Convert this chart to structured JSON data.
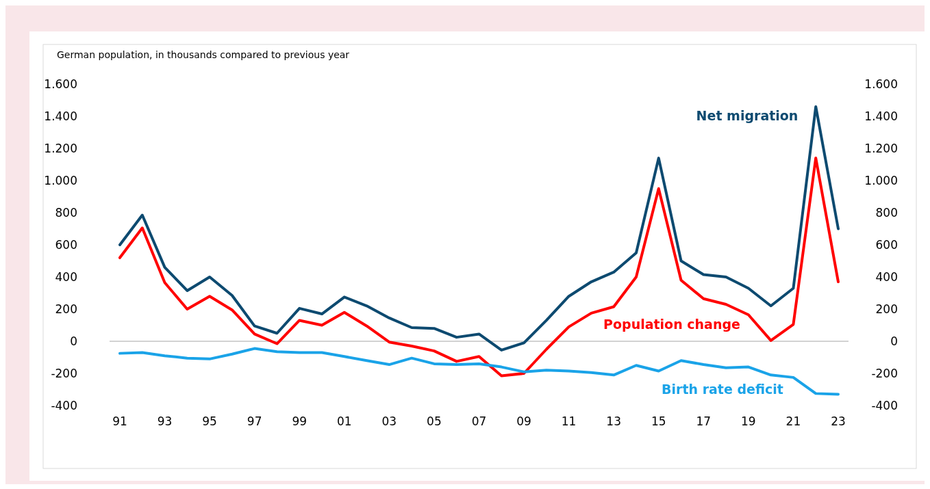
{
  "chart_data": {
    "type": "line",
    "title": "German population, in thousands compared to previous year",
    "categories": [
      "91",
      null,
      "93",
      null,
      "95",
      null,
      "97",
      null,
      "99",
      null,
      "01",
      null,
      "03",
      null,
      "05",
      null,
      "07",
      null,
      "09",
      null,
      "11",
      null,
      "13",
      null,
      "15",
      null,
      "17",
      null,
      "19",
      null,
      "21",
      null,
      "23"
    ],
    "series": [
      {
        "name": "Net migration",
        "color": "#0d4a70",
        "values": [
          600,
          785,
          460,
          315,
          400,
          285,
          95,
          50,
          205,
          170,
          275,
          220,
          145,
          85,
          80,
          25,
          45,
          -55,
          -10,
          130,
          280,
          370,
          430,
          550,
          1140,
          500,
          415,
          400,
          330,
          220,
          330,
          1460,
          700
        ]
      },
      {
        "name": "Population change",
        "color": "#ff0000",
        "values": [
          520,
          705,
          365,
          200,
          280,
          195,
          45,
          -15,
          130,
          100,
          180,
          95,
          -5,
          -30,
          -60,
          -125,
          -95,
          -215,
          -200,
          -50,
          90,
          175,
          215,
          400,
          950,
          380,
          265,
          230,
          165,
          5,
          105,
          1140,
          370
        ]
      },
      {
        "name": "Birth rate deficit",
        "color": "#1aa3e8",
        "values": [
          -75,
          -70,
          -90,
          -105,
          -110,
          -80,
          -45,
          -65,
          -70,
          -70,
          -95,
          -120,
          -145,
          -105,
          -140,
          -145,
          -140,
          -160,
          -190,
          -180,
          -185,
          -195,
          -210,
          -150,
          -185,
          -120,
          -145,
          -165,
          -160,
          -210,
          -225,
          -325,
          -330
        ]
      }
    ],
    "ylim": [
      -400,
      1600
    ],
    "yticks": [
      {
        "value": -400,
        "label": "-400"
      },
      {
        "value": -200,
        "label": "-200"
      },
      0,
      200,
      400,
      600,
      800,
      {
        "value": 1000,
        "label": "1.000"
      },
      {
        "value": 1200,
        "label": "1.200"
      },
      {
        "value": 1400,
        "label": "1.400"
      },
      {
        "value": 1600,
        "label": "1.600"
      }
    ],
    "y2lim": [
      -400,
      1600
    ],
    "y2ticks": [
      {
        "value": -400,
        "label": "-400"
      },
      {
        "value": -200,
        "label": "-200"
      },
      0,
      200,
      400,
      600,
      800,
      {
        "value": 1000,
        "label": "1.000"
      },
      {
        "value": 1200,
        "label": "1.200"
      },
      {
        "value": 1400,
        "label": "1.400"
      },
      {
        "value": 1600,
        "label": "1.600"
      }
    ],
    "ref_lines": [
      {
        "axis": "y",
        "value": 0,
        "color": "#a6a6a6"
      }
    ],
    "grid": false,
    "legend": false,
    "line_style": "solid",
    "marker": "none"
  }
}
